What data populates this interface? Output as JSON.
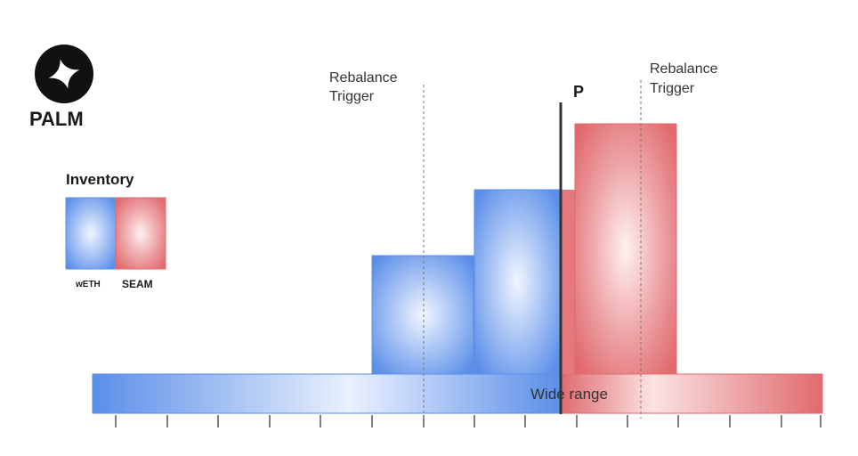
{
  "brand": {
    "name": "PALM",
    "logo_icon": "palm-star-logo-icon"
  },
  "legend": {
    "title": "Inventory",
    "items": [
      {
        "label": "wETH",
        "color": "#5b8ee8"
      },
      {
        "label": "SEAM",
        "color": "#e06a6e"
      }
    ]
  },
  "annotations": {
    "rebalance_left": [
      "Rebalance",
      "Trigger"
    ],
    "rebalance_right": [
      "Rebalance",
      "Trigger"
    ],
    "price_marker": "P",
    "wide_range": "Wide range"
  },
  "colors": {
    "weth": "#5b8ee8",
    "seam": "#e06a6e",
    "price_line": "#333333"
  }
}
